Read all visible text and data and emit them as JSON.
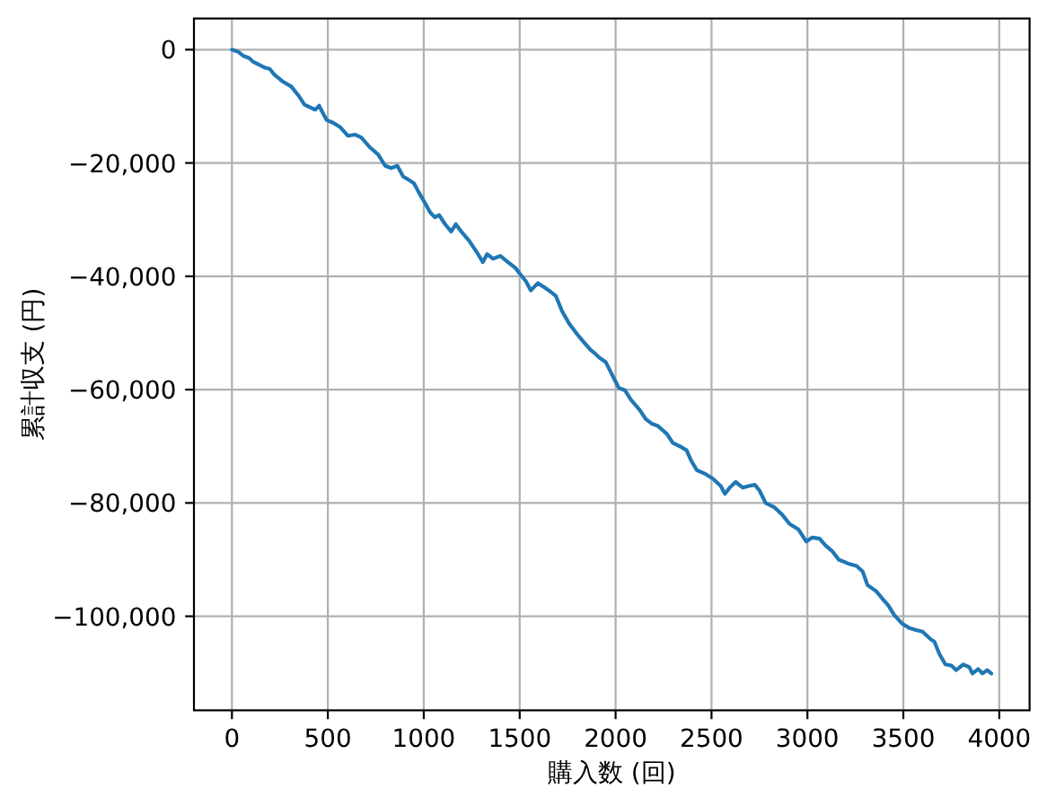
{
  "chart_data": {
    "type": "line",
    "xlabel": "購入数 (回)",
    "ylabel": "累計収支 (円)",
    "x": [
      0,
      34,
      59,
      90,
      109,
      174,
      197,
      221,
      268,
      309,
      347,
      378,
      408,
      434,
      455,
      471,
      493,
      527,
      565,
      605,
      643,
      674,
      721,
      762,
      799,
      830,
      862,
      893,
      918,
      949,
      971,
      1002,
      1033,
      1058,
      1080,
      1111,
      1143,
      1167,
      1195,
      1236,
      1283,
      1308,
      1330,
      1361,
      1399,
      1439,
      1477,
      1502,
      1533,
      1558,
      1595,
      1626,
      1664,
      1689,
      1720,
      1757,
      1799,
      1836,
      1870,
      1892,
      1917,
      1948,
      1979,
      2017,
      2048,
      2080,
      2126,
      2157,
      2188,
      2220,
      2267,
      2298,
      2345,
      2370,
      2392,
      2423,
      2469,
      2507,
      2548,
      2570,
      2595,
      2626,
      2663,
      2694,
      2726,
      2750,
      2782,
      2829,
      2869,
      2907,
      2954,
      2994,
      3026,
      3063,
      3094,
      3132,
      3163,
      3213,
      3256,
      3288,
      3313,
      3359,
      3391,
      3422,
      3453,
      3494,
      3532,
      3563,
      3600,
      3640,
      3662,
      3687,
      3719,
      3750,
      3775,
      3813,
      3844,
      3860,
      3890,
      3912,
      3937,
      3959
    ],
    "values": [
      0,
      -400,
      -1100,
      -1500,
      -2100,
      -3200,
      -3400,
      -4400,
      -5700,
      -6500,
      -8100,
      -9700,
      -10200,
      -10600,
      -9900,
      -11000,
      -12400,
      -12900,
      -13700,
      -15200,
      -15000,
      -15500,
      -17300,
      -18500,
      -20500,
      -20900,
      -20500,
      -22400,
      -22900,
      -23600,
      -25000,
      -26800,
      -28700,
      -29600,
      -29200,
      -30800,
      -32100,
      -30800,
      -32100,
      -33700,
      -36100,
      -37500,
      -36100,
      -36900,
      -36400,
      -37500,
      -38500,
      -39600,
      -40900,
      -42500,
      -41200,
      -41900,
      -42800,
      -43500,
      -46100,
      -48300,
      -50200,
      -51700,
      -53000,
      -53600,
      -54400,
      -55100,
      -57200,
      -59700,
      -60100,
      -61800,
      -63600,
      -65200,
      -66000,
      -66400,
      -67800,
      -69400,
      -70200,
      -70700,
      -72400,
      -74200,
      -74900,
      -75700,
      -77000,
      -78400,
      -77300,
      -76300,
      -77300,
      -77000,
      -76800,
      -77800,
      -80000,
      -80800,
      -82100,
      -83700,
      -84700,
      -86800,
      -86100,
      -86300,
      -87500,
      -88600,
      -90000,
      -90700,
      -91100,
      -92100,
      -94500,
      -95600,
      -96900,
      -98100,
      -99800,
      -101300,
      -102100,
      -102400,
      -102700,
      -104000,
      -104500,
      -106600,
      -108500,
      -108700,
      -109500,
      -108500,
      -109000,
      -110100,
      -109300,
      -110100,
      -109500,
      -110100
    ],
    "color": "#1f77b4",
    "xlim": [
      -198,
      4158
    ],
    "ylim": [
      -116600,
      5500
    ],
    "xticks": [
      0,
      500,
      1000,
      1500,
      2000,
      2500,
      3000,
      3500,
      4000
    ],
    "yticks": [
      {
        "value": -100000,
        "label": "−100,000"
      },
      {
        "value": -80000,
        "label": "−80,000"
      },
      {
        "value": -60000,
        "label": "−60,000"
      },
      {
        "value": -40000,
        "label": "−40,000"
      },
      {
        "value": -20000,
        "label": "−20,000"
      },
      0
    ],
    "grid": true
  }
}
